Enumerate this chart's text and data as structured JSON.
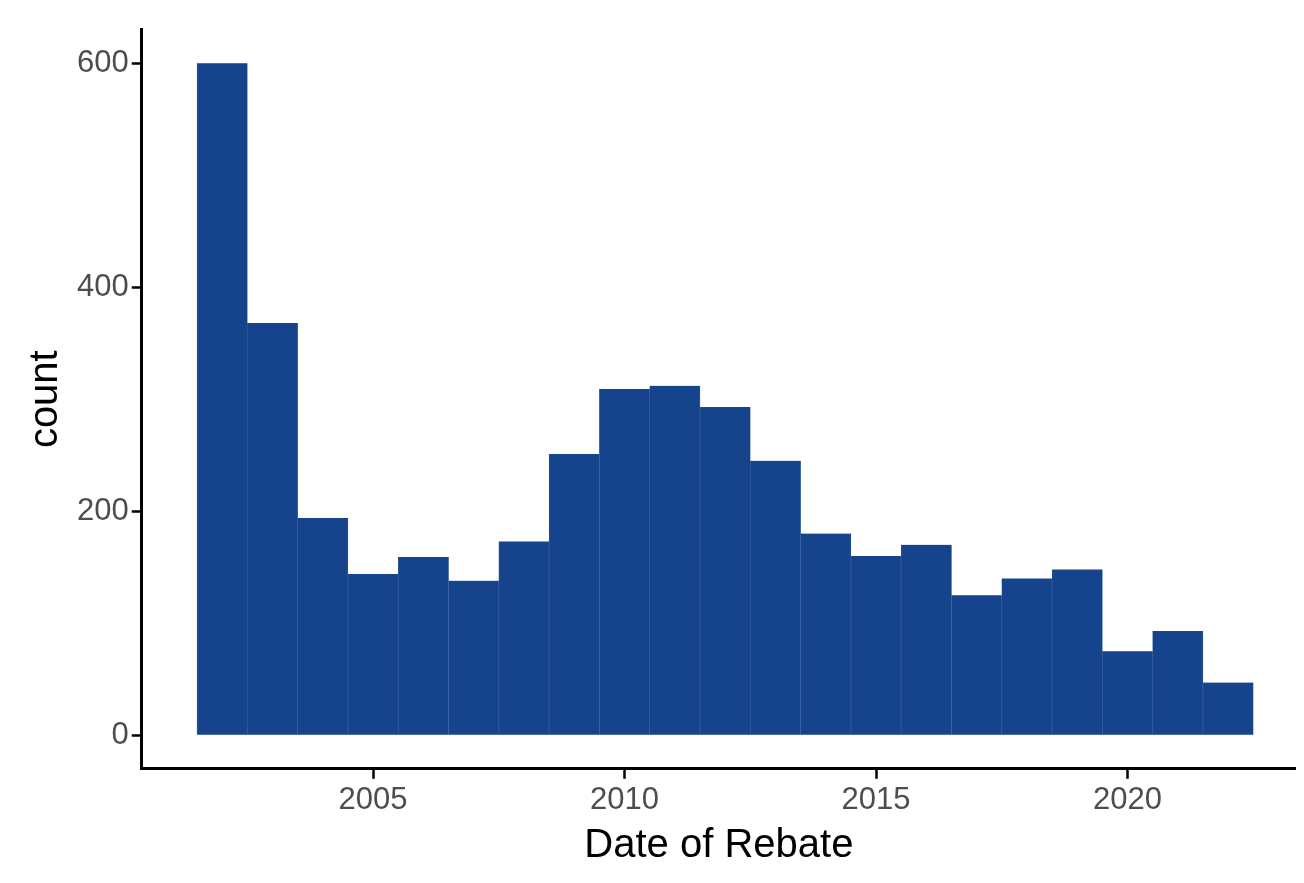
{
  "chart_data": {
    "type": "histogram",
    "xlabel": "Date of Rebate",
    "ylabel": "count",
    "bins": [
      2001.5,
      2002.5,
      2003.5,
      2004.5,
      2005.5,
      2006.5,
      2007.5,
      2008.5,
      2009.5,
      2010.5,
      2011.5,
      2012.5,
      2013.5,
      2014.5,
      2015.5,
      2016.5,
      2017.5,
      2018.5,
      2019.5,
      2020.5,
      2021.5,
      2022.5
    ],
    "values": [
      600,
      368,
      194,
      144,
      159,
      138,
      173,
      251,
      309,
      312,
      293,
      245,
      180,
      160,
      170,
      125,
      140,
      148,
      75,
      93,
      47
    ],
    "color": "#15448c",
    "xlim": [
      2000.4,
      2023.35
    ],
    "ylim": [
      -30,
      630
    ],
    "xticks": [
      2005,
      2010,
      2015,
      2020
    ],
    "yticks": [
      0,
      200,
      400,
      600
    ],
    "grid": false,
    "legend": false
  }
}
